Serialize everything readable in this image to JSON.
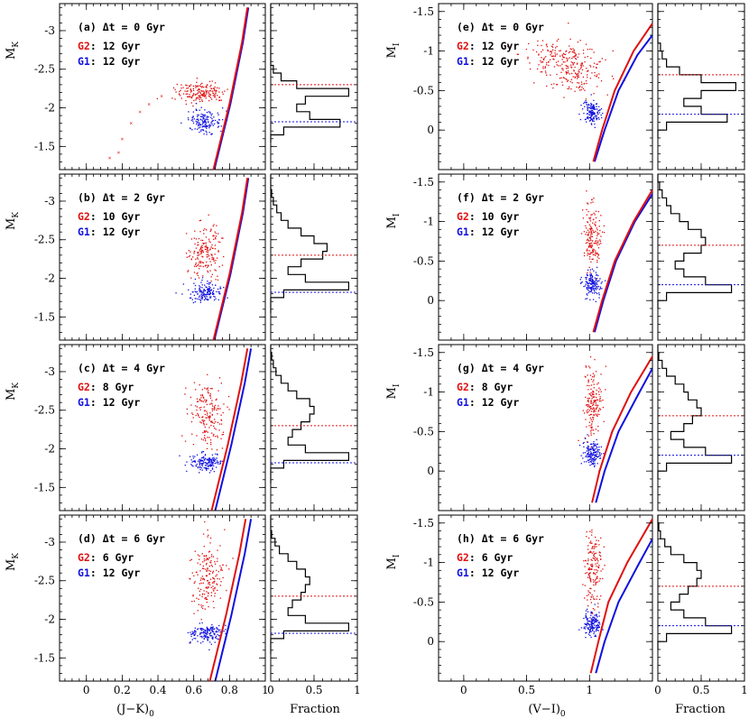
{
  "figure": {
    "x_label_left": "(J−K)",
    "x_label_left_sub": "0",
    "x_label_right": "(V−I)",
    "x_label_right_sub": "0",
    "fraction_label": "Fraction",
    "y_label_left": "M",
    "y_label_left_sub": "K",
    "y_label_right": "M",
    "y_label_right_sub": "I"
  },
  "colors": {
    "G1": "#1010e0",
    "G2": "#e01010",
    "axis": "#000000"
  },
  "chart_data": [
    {
      "type": "scatter",
      "band": "K",
      "xlim": [
        -0.15,
        1.0
      ],
      "ylim": [
        -1.2,
        -3.35
      ],
      "xticks": [
        0,
        0.2,
        0.4,
        0.6,
        0.8,
        1
      ],
      "xtick_labels": [
        "0",
        "0.2",
        "0.4",
        "0.6",
        "0.8",
        "1"
      ],
      "yticks": [
        -1.5,
        -2,
        -2.5,
        -3
      ],
      "ytick_labels": [
        "-1.5",
        "-2",
        "-2.5",
        "-3"
      ],
      "panels": [
        {
          "id": "a",
          "label": "(a) Δt = 0 Gyr",
          "g2_age": "12 Gyr",
          "g1_age": "12 Gyr",
          "g2_cloud": {
            "x": 0.64,
            "y": -2.2,
            "sx": 0.07,
            "sy": 0.07
          },
          "g1_cloud": {
            "x": 0.66,
            "y": -1.82,
            "sx": 0.045,
            "sy": 0.07
          },
          "rgb_tail": [
            [
              0.13,
              -1.35
            ],
            [
              0.18,
              -1.42
            ],
            [
              0.2,
              -1.6
            ],
            [
              0.25,
              -1.8
            ],
            [
              0.3,
              -1.95
            ],
            [
              0.35,
              -2.05
            ],
            [
              0.42,
              -2.15
            ]
          ],
          "g2_iso": [
            [
              0.71,
              -1.2
            ],
            [
              0.8,
              -2.05
            ],
            [
              0.87,
              -2.85
            ],
            [
              0.9,
              -3.3
            ]
          ],
          "g1_iso": [
            [
              0.715,
              -1.2
            ],
            [
              0.805,
              -2.05
            ],
            [
              0.875,
              -2.85
            ],
            [
              0.905,
              -3.3
            ]
          ]
        },
        {
          "id": "b",
          "label": "(b) Δt = 2 Gyr",
          "g2_age": "10 Gyr",
          "g1_age": "12 Gyr",
          "g2_cloud": {
            "x": 0.66,
            "y": -2.35,
            "sx": 0.045,
            "sy": 0.18
          },
          "g1_cloud": {
            "x": 0.67,
            "y": -1.82,
            "sx": 0.045,
            "sy": 0.06
          },
          "g2_iso": [
            [
              0.71,
              -1.2
            ],
            [
              0.8,
              -2.05
            ],
            [
              0.87,
              -2.85
            ],
            [
              0.9,
              -3.3
            ]
          ],
          "g1_iso": [
            [
              0.715,
              -1.2
            ],
            [
              0.805,
              -2.05
            ],
            [
              0.875,
              -2.85
            ],
            [
              0.905,
              -3.3
            ]
          ]
        },
        {
          "id": "c",
          "label": "(c) Δt = 4 Gyr",
          "g2_age": " 8 Gyr",
          "g1_age": "12 Gyr",
          "g2_cloud": {
            "x": 0.67,
            "y": -2.45,
            "sx": 0.045,
            "sy": 0.22
          },
          "g1_cloud": {
            "x": 0.67,
            "y": -1.82,
            "sx": 0.045,
            "sy": 0.06
          },
          "g2_iso": [
            [
              0.7,
              -1.2
            ],
            [
              0.79,
              -2.05
            ],
            [
              0.865,
              -2.85
            ],
            [
              0.9,
              -3.3
            ]
          ],
          "g1_iso": [
            [
              0.72,
              -1.2
            ],
            [
              0.81,
              -2.05
            ],
            [
              0.885,
              -2.85
            ],
            [
              0.92,
              -3.3
            ]
          ]
        },
        {
          "id": "d",
          "label": "(d) Δt = 6 Gyr",
          "g2_age": " 6 Gyr",
          "g1_age": "12 Gyr",
          "g2_cloud": {
            "x": 0.67,
            "y": -2.55,
            "sx": 0.045,
            "sy": 0.24
          },
          "g1_cloud": {
            "x": 0.67,
            "y": -1.82,
            "sx": 0.045,
            "sy": 0.06
          },
          "g2_iso": [
            [
              0.69,
              -1.2
            ],
            [
              0.78,
              -2.05
            ],
            [
              0.855,
              -2.85
            ],
            [
              0.89,
              -3.3
            ]
          ],
          "g1_iso": [
            [
              0.72,
              -1.2
            ],
            [
              0.81,
              -2.05
            ],
            [
              0.885,
              -2.85
            ],
            [
              0.92,
              -3.3
            ]
          ]
        }
      ]
    },
    {
      "type": "scatter",
      "band": "I",
      "xlim": [
        -0.2,
        1.5
      ],
      "ylim": [
        0.5,
        -1.6
      ],
      "xticks": [
        0,
        0.5,
        1
      ],
      "xtick_labels": [
        "0",
        "0.5",
        "1"
      ],
      "yticks": [
        0,
        -0.5,
        -1,
        -1.5
      ],
      "ytick_labels": [
        "0",
        "-0.5",
        "-1",
        "-1.5"
      ],
      "panels": [
        {
          "id": "e",
          "label": "(e) Δt = 0 Gyr",
          "g2_age": "12 Gyr",
          "g1_age": "12 Gyr",
          "g2_cloud": {
            "x": 0.9,
            "y": -0.75,
            "sx": 0.12,
            "sy": 0.15
          },
          "g1_cloud": {
            "x": 1.02,
            "y": -0.22,
            "sx": 0.035,
            "sy": 0.08
          },
          "g2_iso": [
            [
              1.03,
              0.4
            ],
            [
              1.1,
              0.0
            ],
            [
              1.2,
              -0.5
            ],
            [
              1.35,
              -1.0
            ],
            [
              1.5,
              -1.35
            ]
          ],
          "g1_iso": [
            [
              1.04,
              0.4
            ],
            [
              1.12,
              0.0
            ],
            [
              1.23,
              -0.5
            ],
            [
              1.38,
              -0.95
            ],
            [
              1.5,
              -1.2
            ]
          ]
        },
        {
          "id": "f",
          "label": "(f) Δt = 2 Gyr",
          "g2_age": "10 Gyr",
          "g1_age": "12 Gyr",
          "g2_cloud": {
            "x": 1.02,
            "y": -0.8,
            "sx": 0.035,
            "sy": 0.2
          },
          "g1_cloud": {
            "x": 1.02,
            "y": -0.22,
            "sx": 0.035,
            "sy": 0.08
          },
          "g2_iso": [
            [
              1.03,
              0.4
            ],
            [
              1.1,
              0.0
            ],
            [
              1.2,
              -0.5
            ],
            [
              1.35,
              -1.0
            ],
            [
              1.5,
              -1.4
            ]
          ],
          "g1_iso": [
            [
              1.04,
              0.4
            ],
            [
              1.11,
              0.0
            ],
            [
              1.21,
              -0.5
            ],
            [
              1.36,
              -1.0
            ],
            [
              1.5,
              -1.35
            ]
          ]
        },
        {
          "id": "g",
          "label": "(g) Δt = 4 Gyr",
          "g2_age": " 8 Gyr",
          "g1_age": "12 Gyr",
          "g2_cloud": {
            "x": 1.03,
            "y": -0.85,
            "sx": 0.035,
            "sy": 0.22
          },
          "g1_cloud": {
            "x": 1.02,
            "y": -0.22,
            "sx": 0.035,
            "sy": 0.08
          },
          "g2_iso": [
            [
              1.02,
              0.4
            ],
            [
              1.08,
              0.0
            ],
            [
              1.18,
              -0.5
            ],
            [
              1.33,
              -1.0
            ],
            [
              1.5,
              -1.45
            ]
          ],
          "g1_iso": [
            [
              1.05,
              0.4
            ],
            [
              1.12,
              0.0
            ],
            [
              1.23,
              -0.5
            ],
            [
              1.38,
              -0.95
            ],
            [
              1.5,
              -1.3
            ]
          ]
        },
        {
          "id": "h",
          "label": "(h) Δt = 6 Gyr",
          "g2_age": " 6 Gyr",
          "g1_age": "12 Gyr",
          "g2_cloud": {
            "x": 1.03,
            "y": -0.9,
            "sx": 0.035,
            "sy": 0.25
          },
          "g1_cloud": {
            "x": 1.02,
            "y": -0.22,
            "sx": 0.035,
            "sy": 0.08
          },
          "g2_iso": [
            [
              1.01,
              0.4
            ],
            [
              1.07,
              0.0
            ],
            [
              1.15,
              -0.5
            ],
            [
              1.3,
              -1.0
            ],
            [
              1.5,
              -1.55
            ]
          ],
          "g1_iso": [
            [
              1.05,
              0.4
            ],
            [
              1.12,
              0.0
            ],
            [
              1.23,
              -0.5
            ],
            [
              1.38,
              -0.95
            ],
            [
              1.5,
              -1.3
            ]
          ]
        }
      ]
    },
    {
      "type": "histogram",
      "xlim": [
        0,
        1
      ],
      "xticks": [
        0,
        0.5,
        1
      ],
      "xtick_labels": [
        "0",
        "0.5",
        "1"
      ],
      "xlabel": "Fraction",
      "histograms_K": {
        "bin_edges": [
          -3.35,
          -3.25,
          -3.15,
          -3.05,
          -2.95,
          -2.85,
          -2.75,
          -2.65,
          -2.55,
          -2.45,
          -2.35,
          -2.25,
          -2.15,
          -2.05,
          -1.95,
          -1.85,
          -1.75,
          -1.65,
          -1.55
        ],
        "a": [
          0,
          0,
          0,
          0,
          0,
          0,
          0,
          0,
          0.03,
          0.12,
          0.3,
          0.9,
          0.4,
          0.3,
          0.45,
          0.8,
          0.15,
          0,
          0
        ],
        "b": [
          0,
          0,
          0.01,
          0.03,
          0.07,
          0.12,
          0.2,
          0.35,
          0.5,
          0.65,
          0.6,
          0.35,
          0.2,
          0.4,
          0.9,
          0.15,
          0,
          0,
          0
        ],
        "c": [
          0,
          0.01,
          0.03,
          0.06,
          0.12,
          0.2,
          0.3,
          0.45,
          0.5,
          0.45,
          0.35,
          0.25,
          0.2,
          0.4,
          0.9,
          0.15,
          0,
          0,
          0
        ],
        "d": [
          0,
          0,
          0.01,
          0.05,
          0.1,
          0.2,
          0.3,
          0.4,
          0.45,
          0.4,
          0.35,
          0.25,
          0.2,
          0.4,
          0.9,
          0.15,
          0,
          0,
          0
        ],
        "g2_mean": [
          -2.3,
          -2.3,
          -2.3,
          -2.3
        ],
        "g1_mean": [
          -1.82,
          -1.82,
          -1.82,
          -1.82
        ]
      },
      "histograms_I": {
        "bin_edges": [
          -1.6,
          -1.5,
          -1.4,
          -1.3,
          -1.2,
          -1.1,
          -1.0,
          -0.9,
          -0.8,
          -0.7,
          -0.6,
          -0.5,
          -0.4,
          -0.3,
          -0.2,
          -0.1,
          0.0,
          0.1
        ],
        "e": [
          0,
          0,
          0,
          0,
          0,
          0.03,
          0.05,
          0.1,
          0.25,
          0.5,
          0.9,
          0.5,
          0.3,
          0.5,
          0.8,
          0.1,
          0
        ],
        "f": [
          0,
          0.02,
          0.05,
          0.1,
          0.15,
          0.25,
          0.35,
          0.5,
          0.55,
          0.5,
          0.3,
          0.2,
          0.3,
          0.55,
          0.85,
          0.1,
          0
        ],
        "g": [
          0,
          0.01,
          0.05,
          0.1,
          0.2,
          0.3,
          0.35,
          0.45,
          0.5,
          0.4,
          0.3,
          0.15,
          0.3,
          0.55,
          0.85,
          0.1,
          0
        ],
        "h": [
          0,
          0.01,
          0.03,
          0.08,
          0.15,
          0.3,
          0.45,
          0.5,
          0.45,
          0.35,
          0.25,
          0.15,
          0.3,
          0.55,
          0.85,
          0.1,
          0
        ],
        "g2_mean": [
          -0.7,
          -0.7,
          -0.7,
          -0.7
        ],
        "g1_mean": [
          -0.2,
          -0.2,
          -0.2,
          -0.2
        ]
      }
    }
  ]
}
